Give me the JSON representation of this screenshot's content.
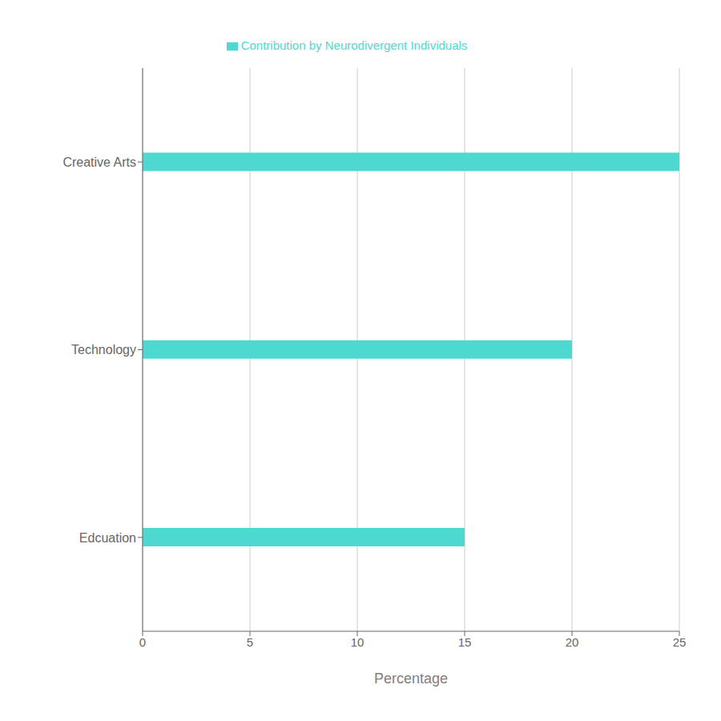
{
  "chart_data": {
    "type": "bar",
    "orientation": "horizontal",
    "categories": [
      "Creative Arts",
      "Technology",
      "Edcuation"
    ],
    "series": [
      {
        "name": "Contribution by Neurodivergent Individuals",
        "color": "#4DD9D0",
        "values": [
          25,
          20,
          15
        ]
      }
    ],
    "xlabel": "Percentage",
    "xlim": [
      0,
      25
    ],
    "xticks": [
      0,
      5,
      10,
      15,
      20,
      25
    ],
    "grid": true,
    "legend": "top"
  }
}
